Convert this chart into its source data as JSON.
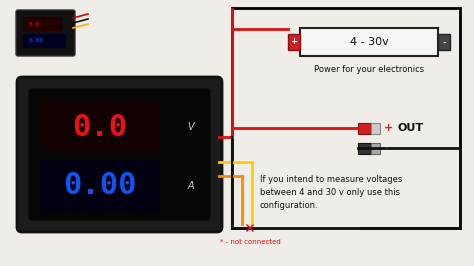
{
  "bg_color": "#f0ede8",
  "meter_outer": "#1a1a1a",
  "meter_inner": "#000000",
  "red_color": "#dd1111",
  "blue_color": "#1144ee",
  "v_label": "V",
  "a_label": "A",
  "battery_label": "4 - 30v",
  "power_label": "Power for your electronics",
  "out_label": "OUT",
  "not_connected_label": "* - not connected",
  "note_text": "If you intend to measure voltages\nbetween 4 and 30 v only use this\nconfiguration.",
  "plus_label": "+",
  "minus_label": "-",
  "wire_red": "#dd1111",
  "wire_yellow": "#ffcc00",
  "wire_orange": "#ff8800",
  "wire_black": "#111111"
}
